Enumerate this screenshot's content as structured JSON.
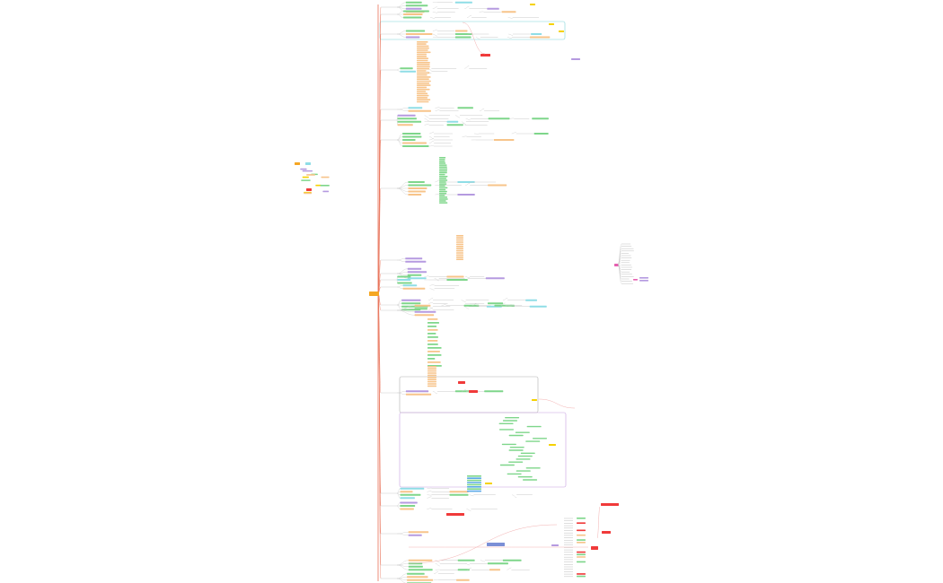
{
  "mindmap": {
    "root_label": "",
    "colors": {
      "root": "#f5a623",
      "trunk": "#e8735a",
      "green": "#7ed68a",
      "orange": "#f7c48a",
      "cyan": "#8fdde6",
      "purple": "#b59ae0",
      "red": "#f03a3a",
      "pink": "#e65fb0",
      "yellow": "#f5d100",
      "blue": "#5aa9e6",
      "grey_line": "#c9c9c9",
      "frame_cyan": "#7fd3d8",
      "frame_grey": "#b0b0b0",
      "frame_purple": "#c7a0e0"
    }
  }
}
